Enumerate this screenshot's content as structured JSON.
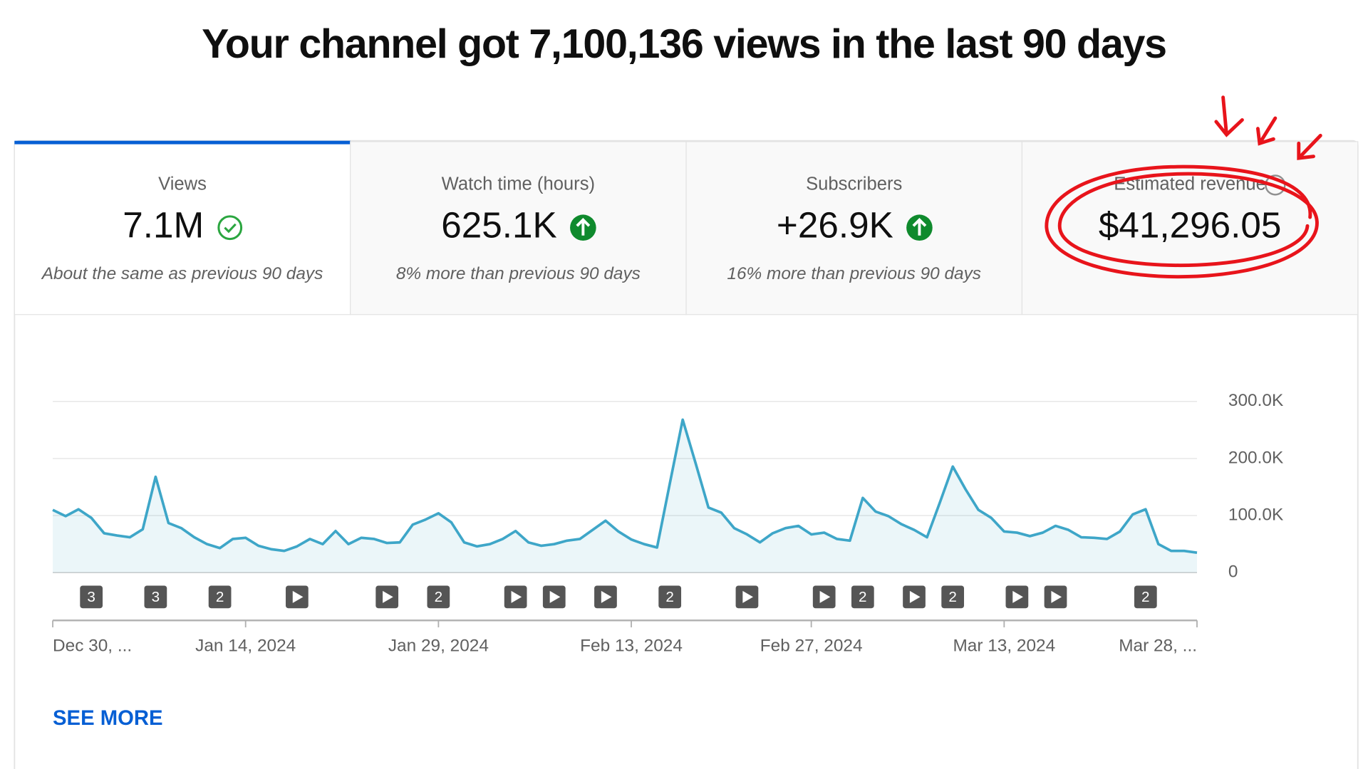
{
  "header": {
    "title": "Your channel got 7,100,136 views in the last 90 days"
  },
  "tabs": [
    {
      "label": "Views",
      "value": "7.1M",
      "note": "About the same as previous 90 days"
    },
    {
      "label": "Watch time (hours)",
      "value": "625.1K",
      "note": "8% more than previous 90 days"
    },
    {
      "label": "Subscribers",
      "value": "+26.9K",
      "note": "16% more than previous 90 days"
    },
    {
      "label": "Estimated revenue",
      "value": "$41,296.05"
    }
  ],
  "chart_data": {
    "type": "line",
    "color": "#3ea6c8",
    "categories": [
      "Dec 30, ...",
      null,
      null,
      null,
      null,
      null,
      null,
      null,
      null,
      null,
      null,
      null,
      null,
      null,
      null,
      "Jan 14, 2024",
      null,
      null,
      null,
      null,
      null,
      null,
      null,
      null,
      null,
      null,
      null,
      null,
      null,
      null,
      "Jan 29, 2024",
      null,
      null,
      null,
      null,
      null,
      null,
      null,
      null,
      null,
      null,
      null,
      null,
      null,
      null,
      "Feb 13, 2024",
      null,
      null,
      null,
      null,
      null,
      null,
      null,
      null,
      null,
      null,
      null,
      null,
      null,
      "Feb 27, 2024",
      null,
      null,
      null,
      null,
      null,
      null,
      null,
      null,
      null,
      null,
      null,
      null,
      null,
      null,
      "Mar 13, 2024",
      null,
      null,
      null,
      null,
      null,
      null,
      null,
      null,
      null,
      null,
      null,
      null,
      null,
      null,
      "Mar 28, ..."
    ],
    "values": [
      110000,
      99000,
      111000,
      96000,
      69000,
      65000,
      62000,
      76000,
      168000,
      87000,
      78000,
      62000,
      50000,
      43000,
      59000,
      61000,
      47000,
      41000,
      38000,
      46000,
      59000,
      50000,
      73000,
      50000,
      61000,
      59000,
      52000,
      53000,
      84000,
      93000,
      104000,
      88000,
      53000,
      46000,
      50000,
      59000,
      73000,
      53000,
      47000,
      50000,
      56000,
      59000,
      75000,
      91000,
      72000,
      58000,
      50000,
      44000,
      157000,
      268000,
      192000,
      114000,
      105000,
      78000,
      67000,
      53000,
      69000,
      78000,
      82000,
      67000,
      70000,
      59000,
      56000,
      131000,
      107000,
      99000,
      85000,
      75000,
      62000,
      123000,
      186000,
      146000,
      110000,
      96000,
      72000,
      70000,
      64000,
      70000,
      82000,
      75000,
      62000,
      61000,
      59000,
      72000,
      102000,
      111000,
      50000,
      38000,
      38000,
      35000
    ],
    "ylim": [
      0,
      300000
    ],
    "yticks": [
      0,
      {
        "value": 100000,
        "label": "100.0K"
      },
      {
        "value": 200000,
        "label": "200.0K"
      },
      {
        "value": 300000,
        "label": "300.0K"
      }
    ],
    "grid": true,
    "markers": [
      {
        "x": 3,
        "count": 3
      },
      {
        "x": 8,
        "count": 3
      },
      {
        "x": 13,
        "count": 2
      },
      {
        "x": 19
      },
      {
        "x": 26
      },
      {
        "x": 30,
        "count": 2
      },
      {
        "x": 36
      },
      {
        "x": 39
      },
      {
        "x": 43
      },
      {
        "x": 48,
        "count": 2
      },
      {
        "x": 54
      },
      {
        "x": 60
      },
      {
        "x": 63,
        "count": 2
      },
      {
        "x": 67
      },
      {
        "x": 70,
        "count": 2
      },
      {
        "x": 75
      },
      {
        "x": 78
      },
      {
        "x": 85,
        "count": 2
      }
    ]
  },
  "footer": {
    "link": "SEE MORE"
  }
}
